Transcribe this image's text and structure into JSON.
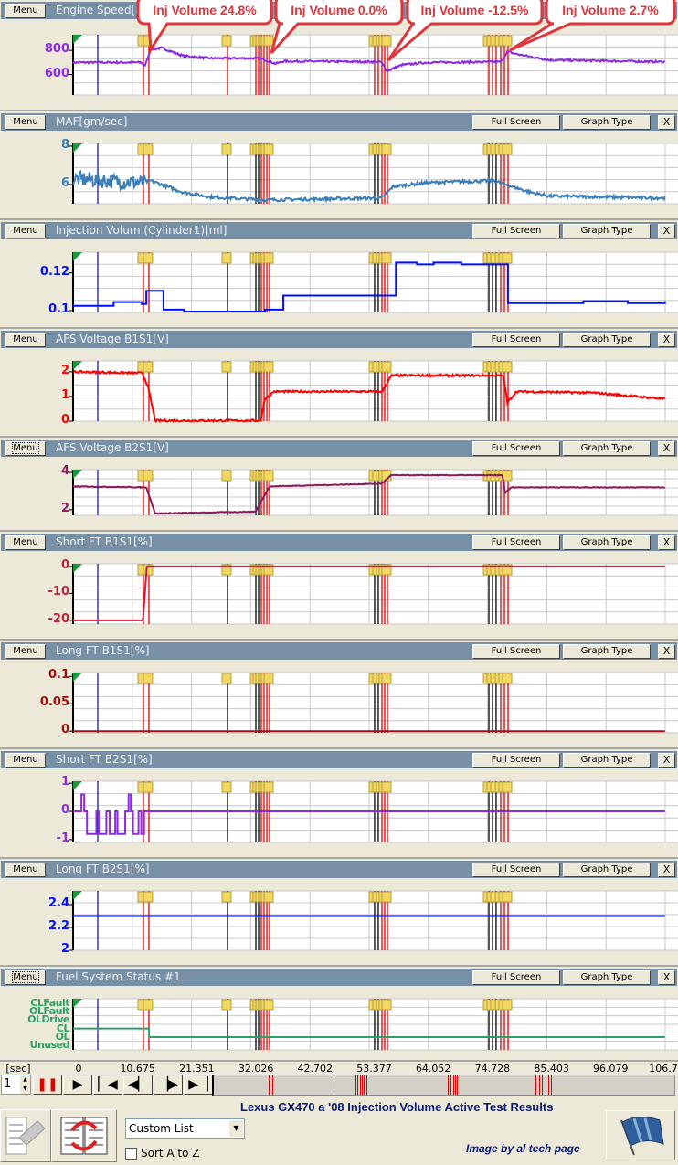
{
  "time_axis": {
    "unit_label": "[sec]",
    "ticks": [
      "0",
      "10.675",
      "21.351",
      "32.026",
      "42.702",
      "53.377",
      "64.052",
      "74.728",
      "85.403",
      "96.079",
      "106.754"
    ],
    "xlim": [
      0,
      106.754
    ]
  },
  "events": [
    {
      "t": 4.45,
      "color": "#1a1a9a"
    },
    {
      "t": 12.68,
      "color": "#e00000"
    },
    {
      "t": 13.67,
      "color": "#e00000"
    },
    {
      "t": 27.84,
      "color": "#000000"
    },
    {
      "t": 32.95,
      "color": "#000000"
    },
    {
      "t": 33.44,
      "color": "#000000"
    },
    {
      "t": 33.94,
      "color": "#e00000"
    },
    {
      "t": 34.43,
      "color": "#e00000"
    },
    {
      "t": 34.93,
      "color": "#e00000"
    },
    {
      "t": 35.42,
      "color": "#e00000"
    },
    {
      "t": 54.36,
      "color": "#000000"
    },
    {
      "t": 55.02,
      "color": "#000000"
    },
    {
      "t": 55.68,
      "color": "#e00000"
    },
    {
      "t": 56.18,
      "color": "#e00000"
    },
    {
      "t": 56.67,
      "color": "#e00000"
    },
    {
      "t": 74.96,
      "color": "#000000"
    },
    {
      "t": 75.62,
      "color": "#000000"
    },
    {
      "t": 76.27,
      "color": "#000000"
    },
    {
      "t": 77.1,
      "color": "#e00000"
    },
    {
      "t": 77.76,
      "color": "#e00000"
    },
    {
      "t": 78.42,
      "color": "#e00000"
    }
  ],
  "callouts": [
    "Inj Volume 24.8%",
    "Inj Volume 0.0%",
    "Inj Volume -12.5%",
    "Inj Volume 2.7%"
  ],
  "chart_data": [
    {
      "type": "line",
      "title": "Engine Speed[rpm]",
      "menu_label": "Menu",
      "color": "#8a2be2",
      "ylim": [
        430,
        930
      ],
      "ticks": [
        {
          "v": 800,
          "label": "800"
        },
        {
          "v": 600,
          "label": "600"
        }
      ],
      "noise": 8,
      "step": false,
      "points": [
        [
          0,
          700
        ],
        [
          12.2,
          700
        ],
        [
          13,
          675
        ],
        [
          14,
          810
        ],
        [
          16,
          820
        ],
        [
          19.8,
          755
        ],
        [
          24.7,
          735
        ],
        [
          33.5,
          735
        ],
        [
          35,
          715
        ],
        [
          36.5,
          690
        ],
        [
          38,
          710
        ],
        [
          55.5,
          705
        ],
        [
          56.6,
          630
        ],
        [
          59.3,
          680
        ],
        [
          64,
          700
        ],
        [
          77.2,
          705
        ],
        [
          78.3,
          790
        ],
        [
          79.9,
          770
        ],
        [
          85.7,
          720
        ],
        [
          106.7,
          705
        ]
      ]
    },
    {
      "type": "line",
      "title": "MAF[gm/sec]",
      "menu_label": "Menu",
      "full_screen_label": "Full Screen",
      "graph_type_label": "Graph Type",
      "close_label": "X",
      "color": "#3c7fb8",
      "ylim": [
        5.0,
        8.14
      ],
      "ticks": [
        {
          "v": 8,
          "label": "8"
        },
        {
          "v": 6,
          "label": "6"
        }
      ],
      "noise": 0.08,
      "step": false,
      "points": [
        [
          0,
          6.3
        ],
        [
          12.5,
          6.1
        ],
        [
          14,
          6.2
        ],
        [
          19.8,
          5.6
        ],
        [
          24.7,
          5.35
        ],
        [
          34.6,
          5.2
        ],
        [
          55.7,
          5.3
        ],
        [
          57.7,
          5.9
        ],
        [
          64,
          6.1
        ],
        [
          75.8,
          6.2
        ],
        [
          82.4,
          5.6
        ],
        [
          85.7,
          5.4
        ],
        [
          106.7,
          5.3
        ]
      ]
    },
    {
      "type": "line",
      "title": "Injection Volum (Cylinder1)[ml]",
      "menu_label": "Menu",
      "full_screen_label": "Full Screen",
      "graph_type_label": "Graph Type",
      "close_label": "X",
      "color": "#0010ff",
      "ylim": [
        0.099,
        0.131
      ],
      "ticks": [
        {
          "v": 0.12,
          "label": "0.12"
        },
        {
          "v": 0.1,
          "label": "0.1"
        }
      ],
      "noise": 0,
      "step": true,
      "points": [
        [
          0,
          0.1025
        ],
        [
          7.3,
          0.1045
        ],
        [
          12.4,
          0.1035
        ],
        [
          13.2,
          0.1105
        ],
        [
          16.3,
          0.1005
        ],
        [
          20,
          0.0995
        ],
        [
          34.6,
          0.1005
        ],
        [
          37.9,
          0.108
        ],
        [
          58.2,
          0.1255
        ],
        [
          62,
          0.1245
        ],
        [
          65,
          0.1255
        ],
        [
          70,
          0.1245
        ],
        [
          78.4,
          0.104
        ],
        [
          92,
          0.105
        ],
        [
          100,
          0.104
        ],
        [
          106.7,
          0.105
        ]
      ]
    },
    {
      "type": "line",
      "title": "AFS Voltage B1S1[V]",
      "menu_label": "Menu",
      "full_screen_label": "Full Screen",
      "graph_type_label": "Graph Type",
      "close_label": "X",
      "color": "#ff0000",
      "ylim": [
        0,
        2.44
      ],
      "ticks": [
        {
          "v": 2,
          "label": "2"
        },
        {
          "v": 1,
          "label": "1"
        },
        {
          "v": 0,
          "label": "0"
        }
      ],
      "noise": 0.04,
      "step": false,
      "points": [
        [
          0,
          2.0
        ],
        [
          12.5,
          1.95
        ],
        [
          13.5,
          1.4
        ],
        [
          14.8,
          0.02
        ],
        [
          33.8,
          0.02
        ],
        [
          34.6,
          0.9
        ],
        [
          36.2,
          1.2
        ],
        [
          55.7,
          1.2
        ],
        [
          57.4,
          1.85
        ],
        [
          77.6,
          1.85
        ],
        [
          78.3,
          0.75
        ],
        [
          79.9,
          1.2
        ],
        [
          93.9,
          1.15
        ],
        [
          106.7,
          0.9
        ]
      ]
    },
    {
      "type": "line",
      "title": "AFS Voltage B2S1[V]",
      "menu_label": "Menu",
      "menu_focused": true,
      "full_screen_label": "Full Screen",
      "graph_type_label": "Graph Type",
      "close_label": "X",
      "color": "#8b1a5c",
      "ylim": [
        1.7,
        4.15
      ],
      "ticks": [
        {
          "v": 4,
          "label": "4"
        },
        {
          "v": 2,
          "label": "2"
        }
      ],
      "noise": 0.02,
      "step": false,
      "points": [
        [
          0,
          3.25
        ],
        [
          13.2,
          3.2
        ],
        [
          14.8,
          1.8
        ],
        [
          32.9,
          1.9
        ],
        [
          35.4,
          3.25
        ],
        [
          55.7,
          3.4
        ],
        [
          57.3,
          3.85
        ],
        [
          77.4,
          3.85
        ],
        [
          77.9,
          2.9
        ],
        [
          79,
          3.2
        ],
        [
          106.7,
          3.2
        ]
      ]
    },
    {
      "type": "line",
      "title": "Short FT B1S1[%]",
      "menu_label": "Menu",
      "full_screen_label": "Full Screen",
      "graph_type_label": "Graph Type",
      "close_label": "X",
      "color": "#c0203c",
      "ylim": [
        -21.4,
        1
      ],
      "ticks": [
        {
          "v": 0,
          "label": "0"
        },
        {
          "v": -10,
          "label": "-10"
        },
        {
          "v": -20,
          "label": "-20"
        }
      ],
      "noise": 0,
      "step": false,
      "points": [
        [
          0,
          -20
        ],
        [
          12.6,
          -20
        ],
        [
          13.3,
          0
        ],
        [
          106.7,
          0
        ]
      ]
    },
    {
      "type": "line",
      "title": "Long FT B1S1[%]",
      "menu_label": "Menu",
      "full_screen_label": "Full Screen",
      "graph_type_label": "Graph Type",
      "close_label": "X",
      "color": "#a01010",
      "ylim": [
        -0.003,
        0.107
      ],
      "ticks": [
        {
          "v": 0.1,
          "label": "0.1"
        },
        {
          "v": 0.05,
          "label": "0.05"
        },
        {
          "v": 0,
          "label": "0"
        }
      ],
      "noise": 0,
      "step": false,
      "points": [
        [
          0,
          0
        ],
        [
          106.7,
          0
        ]
      ]
    },
    {
      "type": "line",
      "title": "Short FT B2S1[%]",
      "menu_label": "Menu",
      "full_screen_label": "Full Screen",
      "graph_type_label": "Graph Type",
      "close_label": "X",
      "color": "#8a2be2",
      "ylim": [
        -1.1,
        1.07
      ],
      "ticks": [
        {
          "v": 1,
          "label": "1"
        },
        {
          "v": 0,
          "label": "0"
        },
        {
          "v": -1,
          "label": "-1"
        }
      ],
      "noise": 0,
      "step": true,
      "points": [
        [
          0,
          0
        ],
        [
          1.5,
          0.6
        ],
        [
          2,
          0
        ],
        [
          2.5,
          -0.8
        ],
        [
          4.2,
          0
        ],
        [
          4.6,
          -0.8
        ],
        [
          6,
          0
        ],
        [
          6.6,
          -0.8
        ],
        [
          7.6,
          0
        ],
        [
          8,
          -0.8
        ],
        [
          9.4,
          0
        ],
        [
          10,
          0.6
        ],
        [
          10.4,
          0
        ],
        [
          10.8,
          -0.8
        ],
        [
          11.8,
          0
        ],
        [
          12.3,
          -0.8
        ],
        [
          12.8,
          0
        ],
        [
          106.7,
          0
        ]
      ]
    },
    {
      "type": "line",
      "title": "Long FT B2S1[%]",
      "menu_label": "Menu",
      "full_screen_label": "Full Screen",
      "graph_type_label": "Graph Type",
      "close_label": "X",
      "color": "#0010ff",
      "ylim": [
        2,
        2.52
      ],
      "ticks": [
        {
          "v": 2.4,
          "label": "2.4"
        },
        {
          "v": 2.2,
          "label": "2.2"
        },
        {
          "v": 2,
          "label": "2"
        }
      ],
      "noise": 0,
      "step": false,
      "points": [
        [
          0,
          2.3
        ],
        [
          106.7,
          2.3
        ]
      ]
    },
    {
      "type": "line",
      "title": "Fuel System Status #1",
      "menu_label": "Menu",
      "menu_focused": true,
      "full_screen_label": "Full Screen",
      "graph_type_label": "Graph Type",
      "close_label": "X",
      "color": "#2f9e6a",
      "ylim": [
        -0.5,
        5.5
      ],
      "categories": [
        "Unused",
        "OL",
        "CL",
        "OLDrive",
        "OLFault",
        "CLFault"
      ],
      "noise": 0,
      "step": true,
      "points": [
        [
          0,
          2
        ],
        [
          12.9,
          2
        ],
        [
          13.7,
          1
        ],
        [
          106.7,
          1
        ]
      ]
    }
  ],
  "controls": {
    "speed_value": "1",
    "scroll_events_label": ""
  },
  "bottom": {
    "title": "Lexus GX470 a '08 Injection Volume Active Test Results",
    "credit": "Image by al tech page",
    "list_select": "Custom List",
    "sort_label": "Sort A to Z"
  }
}
